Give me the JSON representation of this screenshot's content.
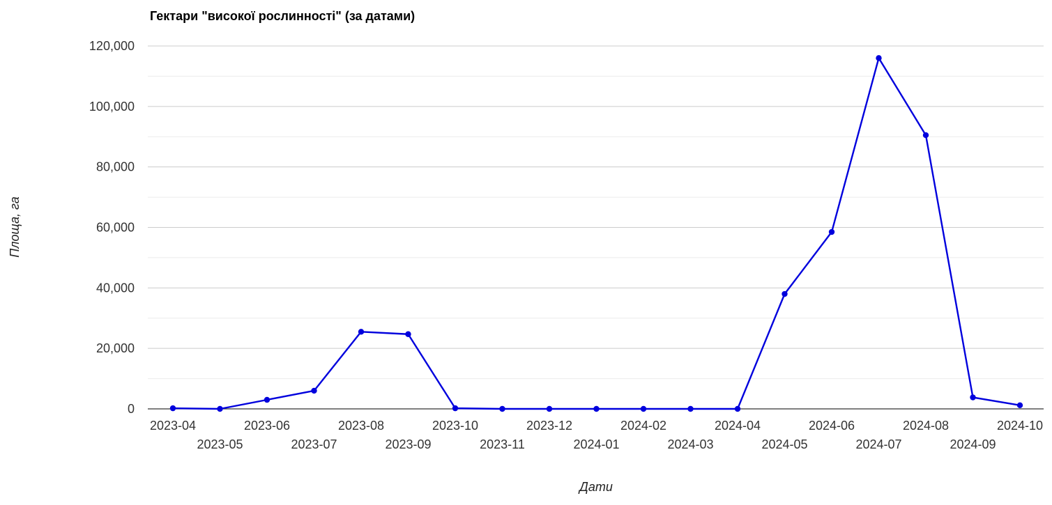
{
  "chart_data": {
    "type": "line",
    "title": "Гектари \"високої рослинності\" (за датами)",
    "xlabel": "Дати",
    "ylabel": "Площа, га",
    "ylim": [
      0,
      120000
    ],
    "y_ticks": [
      "0",
      "20,000",
      "40,000",
      "60,000",
      "80,000",
      "100,000",
      "120,000"
    ],
    "y_tick_values": [
      0,
      20000,
      40000,
      60000,
      80000,
      100000,
      120000
    ],
    "grid": true,
    "legend": "none",
    "categories": [
      "2023-04",
      "2023-05",
      "2023-06",
      "2023-07",
      "2023-08",
      "2023-09",
      "2023-10",
      "2023-11",
      "2023-12",
      "2024-01",
      "2024-02",
      "2024-03",
      "2024-04",
      "2024-05",
      "2024-06",
      "2024-07",
      "2024-08",
      "2024-09",
      "2024-10"
    ],
    "series": [
      {
        "color": "#0000dd",
        "values": [
          200,
          0,
          3000,
          6000,
          25500,
          24700,
          200,
          0,
          0,
          0,
          0,
          0,
          0,
          38000,
          58500,
          116000,
          90500,
          3800,
          1200
        ]
      }
    ]
  }
}
